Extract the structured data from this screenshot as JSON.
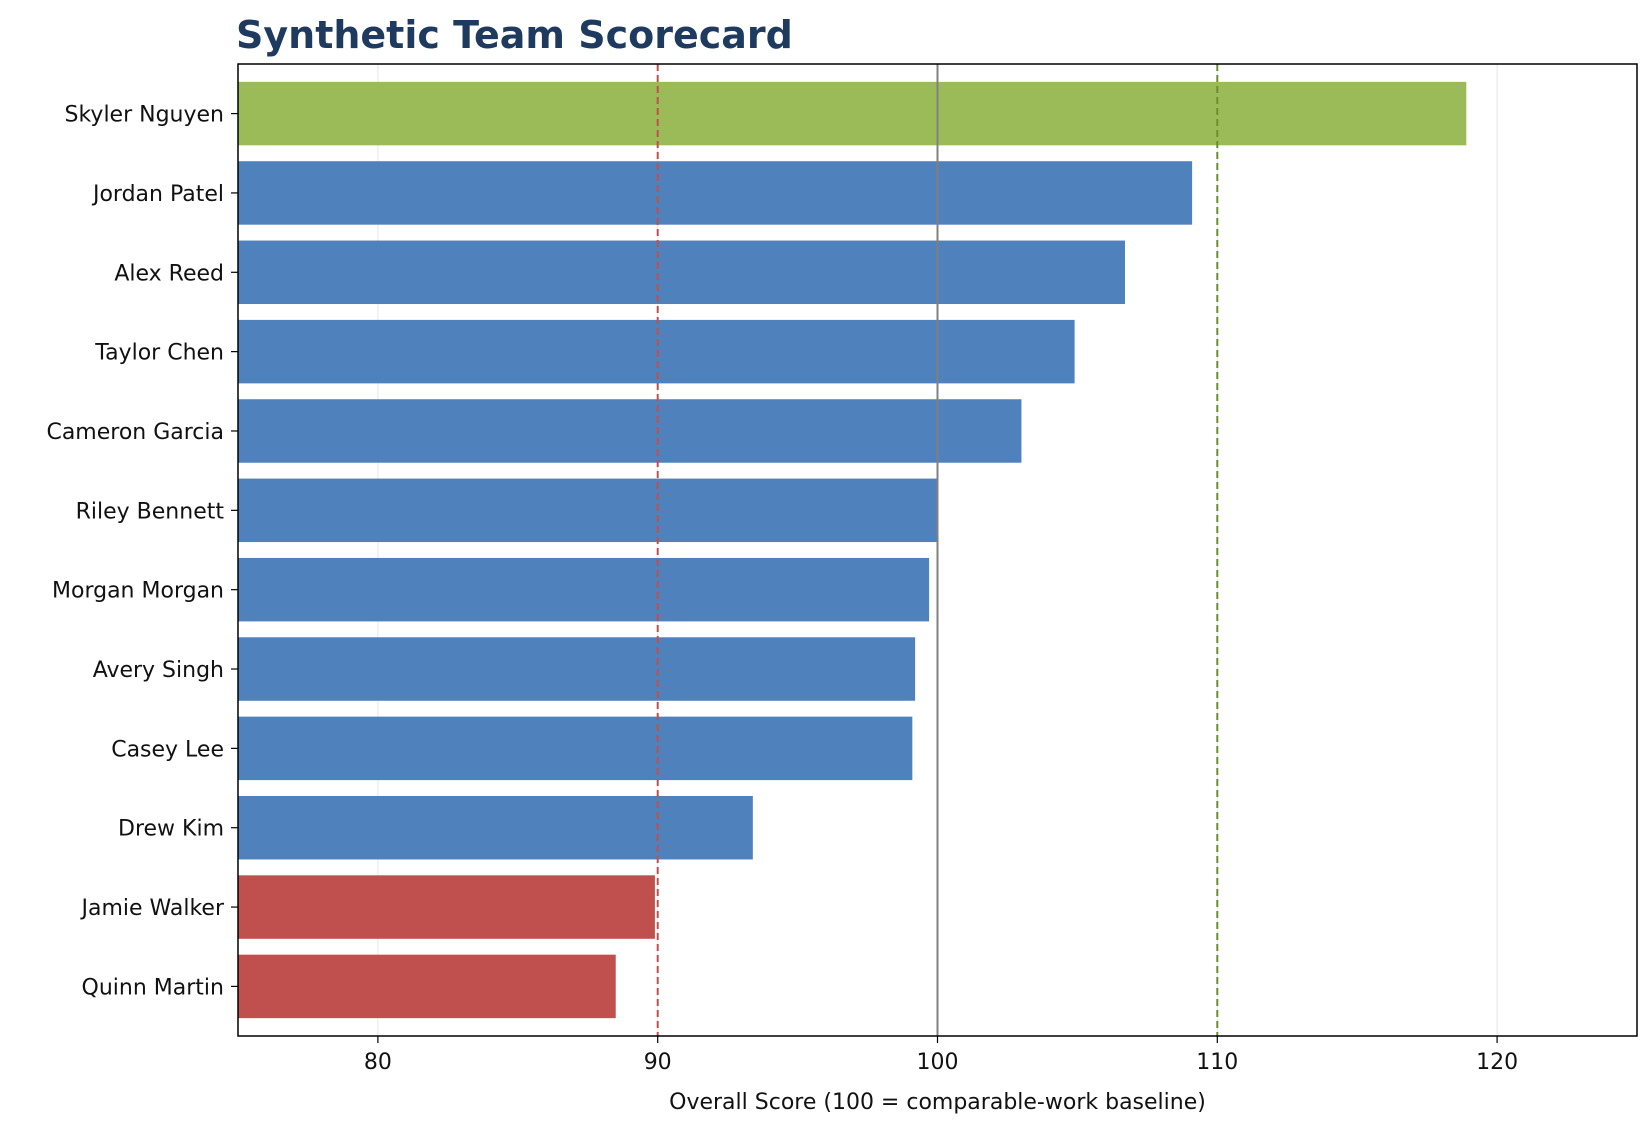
{
  "chart_data": {
    "type": "bar",
    "orientation": "horizontal",
    "title": "Synthetic Team Scorecard",
    "xlabel": "Overall Score (100 = comparable-work baseline)",
    "ylabel": "",
    "xlim": [
      75,
      125
    ],
    "xticks": [
      80,
      90,
      100,
      110,
      120
    ],
    "grid": "vertical-light",
    "categories": [
      "Skyler Nguyen",
      "Jordan Patel",
      "Alex Reed",
      "Taylor Chen",
      "Cameron Garcia",
      "Riley Bennett",
      "Morgan Morgan",
      "Avery Singh",
      "Casey Lee",
      "Drew Kim",
      "Jamie Walker",
      "Quinn Martin"
    ],
    "values": [
      118.9,
      109.1,
      106.7,
      104.9,
      103.0,
      100.0,
      99.7,
      99.2,
      99.1,
      93.4,
      89.9,
      88.5
    ],
    "bar_colors": [
      "#9bbb59",
      "#4f81bd",
      "#4f81bd",
      "#4f81bd",
      "#4f81bd",
      "#4f81bd",
      "#4f81bd",
      "#4f81bd",
      "#4f81bd",
      "#4f81bd",
      "#c0504d",
      "#c0504d"
    ],
    "reference_lines": [
      {
        "value": 90,
        "style": "dashed",
        "color": "#c0504d"
      },
      {
        "value": 100,
        "style": "solid",
        "color": "#808080"
      },
      {
        "value": 110,
        "style": "dashed",
        "color": "#6a8f2e"
      }
    ]
  }
}
